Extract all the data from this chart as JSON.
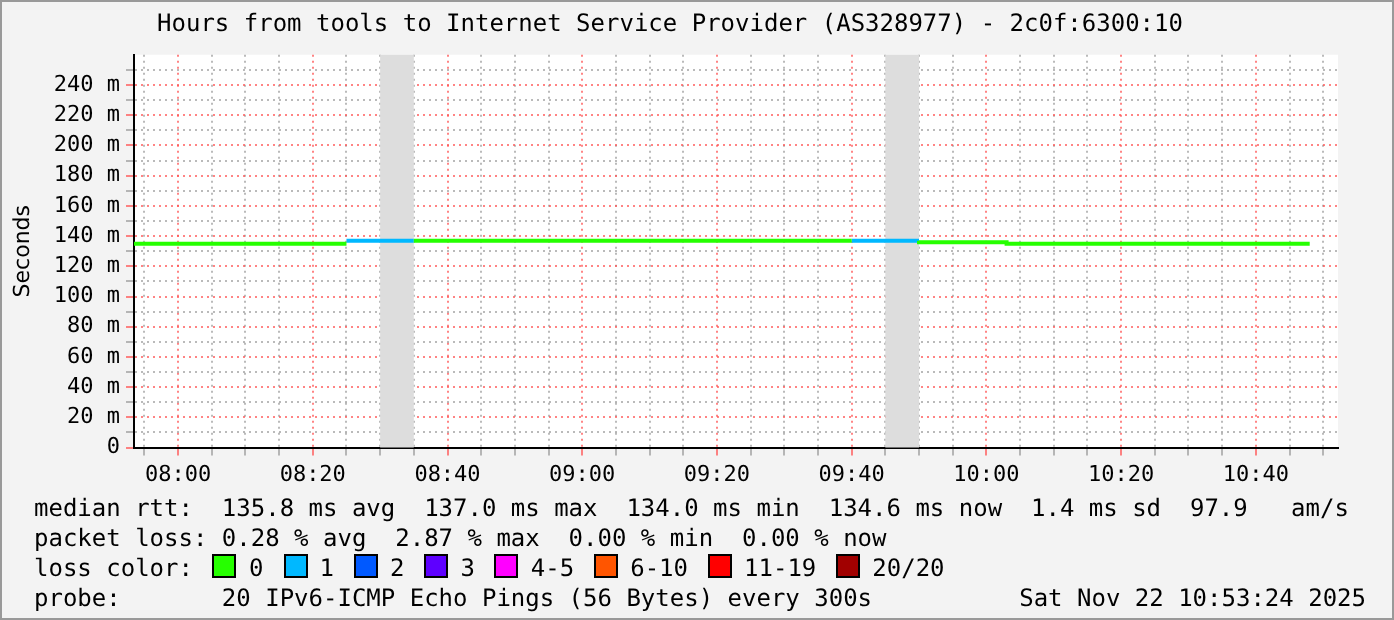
{
  "chart_data": {
    "type": "step",
    "title": "Hours from tools to Internet Service Provider (AS328977) - 2c0f:6300:10",
    "ylabel": "Seconds",
    "legend_title": "loss color:",
    "legend": "bottom",
    "grid": true,
    "xlim": [
      7.891,
      10.87
    ],
    "ylim": [
      0,
      260
    ],
    "xticks": [
      {
        "value": 7.9167,
        "label": null
      },
      {
        "value": 8,
        "label": "08:00"
      },
      {
        "value": 8.0833,
        "label": null
      },
      {
        "value": 8.1667,
        "label": null
      },
      {
        "value": 8.25,
        "label": null
      },
      {
        "value": 8.3333,
        "label": "08:20"
      },
      {
        "value": 8.4167,
        "label": null
      },
      {
        "value": 8.5,
        "label": null
      },
      {
        "value": 8.5833,
        "label": null
      },
      {
        "value": 8.6667,
        "label": "08:40"
      },
      {
        "value": 8.75,
        "label": null
      },
      {
        "value": 8.8333,
        "label": null
      },
      {
        "value": 8.9167,
        "label": null
      },
      {
        "value": 9,
        "label": "09:00"
      },
      {
        "value": 9.0833,
        "label": null
      },
      {
        "value": 9.1667,
        "label": null
      },
      {
        "value": 9.25,
        "label": null
      },
      {
        "value": 9.3333,
        "label": "09:20"
      },
      {
        "value": 9.4167,
        "label": null
      },
      {
        "value": 9.5,
        "label": null
      },
      {
        "value": 9.5833,
        "label": null
      },
      {
        "value": 9.6667,
        "label": "09:40"
      },
      {
        "value": 9.75,
        "label": null
      },
      {
        "value": 9.8333,
        "label": null
      },
      {
        "value": 9.9167,
        "label": null
      },
      {
        "value": 10,
        "label": "10:00"
      },
      {
        "value": 10.0833,
        "label": null
      },
      {
        "value": 10.1667,
        "label": null
      },
      {
        "value": 10.25,
        "label": null
      },
      {
        "value": 10.3333,
        "label": "10:20"
      },
      {
        "value": 10.4167,
        "label": null
      },
      {
        "value": 10.5,
        "label": null
      },
      {
        "value": 10.5833,
        "label": null
      },
      {
        "value": 10.6667,
        "label": "10:40"
      },
      {
        "value": 10.75,
        "label": null
      },
      {
        "value": 10.8333,
        "label": null
      }
    ],
    "yticks": [
      0,
      {
        "value": 10,
        "label": null
      },
      {
        "value": 20,
        "label": "20 m"
      },
      {
        "value": 30,
        "label": null
      },
      {
        "value": 40,
        "label": "40 m"
      },
      {
        "value": 50,
        "label": null
      },
      {
        "value": 60,
        "label": "60 m"
      },
      {
        "value": 70,
        "label": null
      },
      {
        "value": 80,
        "label": "80 m"
      },
      {
        "value": 90,
        "label": null
      },
      {
        "value": 100,
        "label": "100 m"
      },
      {
        "value": 110,
        "label": null
      },
      {
        "value": 120,
        "label": "120 m"
      },
      {
        "value": 130,
        "label": null
      },
      {
        "value": 140,
        "label": "140 m"
      },
      {
        "value": 150,
        "label": null
      },
      {
        "value": 160,
        "label": "160 m"
      },
      {
        "value": 170,
        "label": null
      },
      {
        "value": 180,
        "label": "180 m"
      },
      {
        "value": 190,
        "label": null
      },
      {
        "value": 200,
        "label": "200 m"
      },
      {
        "value": 210,
        "label": null
      },
      {
        "value": 220,
        "label": "220 m"
      },
      {
        "value": 230,
        "label": null
      },
      {
        "value": 240,
        "label": "240 m"
      },
      {
        "value": 250,
        "label": null
      }
    ],
    "bands": [
      {
        "axis": "x",
        "from": 8.5,
        "to": 8.5833,
        "color": "#dddddd"
      },
      {
        "axis": "x",
        "from": 9.75,
        "to": 9.8333,
        "color": "#dddddd"
      }
    ],
    "series": [
      {
        "name": "0",
        "color": "#26ff00",
        "x": [
          7.891,
          8.4167,
          8.5,
          8.5833,
          9.6667,
          9.75,
          9.8333,
          10.05,
          10.15,
          10.8
        ],
        "values": [
          135,
          135,
          null,
          137,
          137,
          null,
          137,
          136,
          135,
          135
        ]
      },
      {
        "name": "1",
        "color": "#00b8ff",
        "x": [
          8.4167,
          8.5833,
          9.0,
          9.6667,
          9.8333
        ],
        "values": [
          137,
          137,
          null,
          137,
          137
        ]
      },
      {
        "name": "2",
        "color": "#0059ff"
      },
      {
        "name": "3",
        "color": "#5e00ff"
      },
      {
        "name": "4-5",
        "color": "#ff00ff"
      },
      {
        "name": "6-10",
        "color": "#ff5500"
      },
      {
        "name": "11-19",
        "color": "#ff0000"
      },
      {
        "name": "20/20",
        "color": "#a10000"
      }
    ],
    "annotations": [
      "median rtt:  135.8 ms avg  137.0 ms max  134.0 ms min  134.6 ms now  1.4 ms sd  97.9   am/s",
      "packet loss: 0.28 % avg  2.87 % max  0.00 % min  0.00 % now",
      "probe:       20 IPv6-ICMP Echo Pings (56 Bytes) every 300s",
      "Sat Nov 22 10:53:24 2025"
    ]
  }
}
